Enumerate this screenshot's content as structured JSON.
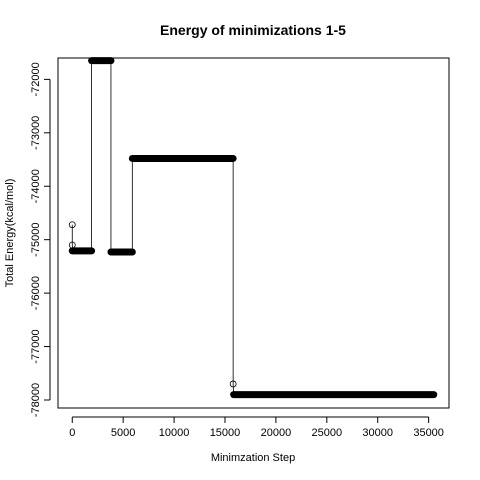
{
  "chart_data": {
    "type": "line",
    "title": "Energy of minimizations 1-5",
    "xlabel": "Minimzation Step",
    "ylabel": "Total Energy(kcal/mol)",
    "xlim": [
      -1400,
      37000
    ],
    "ylim": [
      -78150,
      -71600
    ],
    "xticks": [
      0,
      5000,
      10000,
      15000,
      20000,
      25000,
      30000,
      35000
    ],
    "xtick_labels": [
      "0",
      "5000",
      "10000",
      "15000",
      "20000",
      "25000",
      "30000",
      "35000"
    ],
    "yticks": [
      -78000,
      -77000,
      -76000,
      -75000,
      -74000,
      -73000,
      -72000
    ],
    "ytick_labels": [
      "-78000",
      "-77000",
      "-76000",
      "-75000",
      "-74000",
      "-73000",
      "-72000"
    ],
    "grid": false,
    "legend": "none",
    "series": [
      {
        "line_points": [
          [
            0,
            -74720
          ],
          [
            0,
            -75100
          ],
          [
            50,
            -75200
          ],
          [
            1900,
            -75210
          ],
          [
            1900,
            -71650
          ],
          [
            3800,
            -71650
          ],
          [
            3800,
            -75220
          ],
          [
            5900,
            -75230
          ],
          [
            5900,
            -73480
          ],
          [
            15800,
            -73480
          ],
          [
            15800,
            -77700
          ],
          [
            15850,
            -77900
          ],
          [
            35500,
            -77900
          ]
        ],
        "open_markers": [
          [
            0,
            -74720
          ],
          [
            0,
            -75100
          ],
          [
            15800,
            -77700
          ]
        ],
        "dense_segments": [
          {
            "x_start": 0,
            "x_end": 1900,
            "y": -75210
          },
          {
            "x_start": 1900,
            "x_end": 3800,
            "y": -71650
          },
          {
            "x_start": 3800,
            "x_end": 5900,
            "y": -75230
          },
          {
            "x_start": 5900,
            "x_end": 15800,
            "y": -73480
          },
          {
            "x_start": 15850,
            "x_end": 35500,
            "y": -77900
          }
        ]
      }
    ]
  }
}
